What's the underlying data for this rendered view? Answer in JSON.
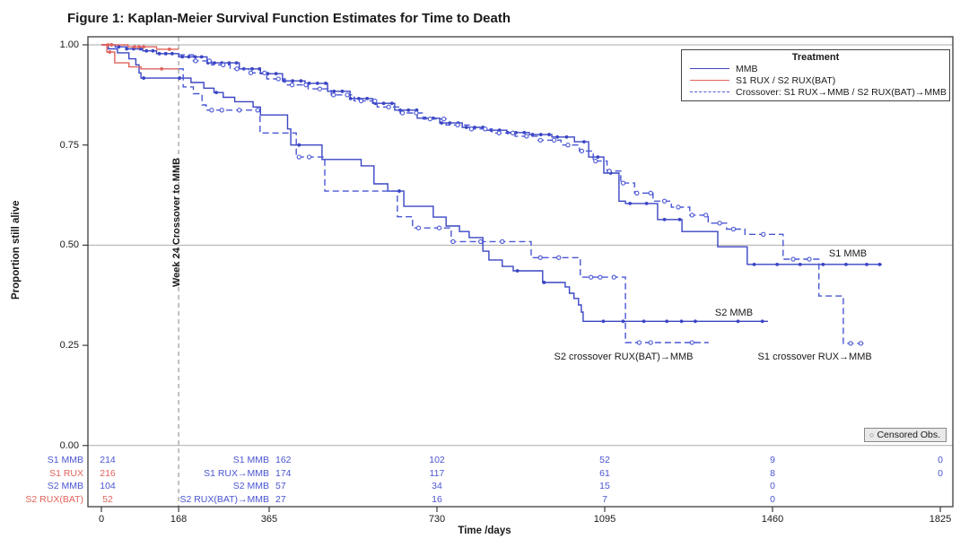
{
  "title": "Figure 1: Kaplan-Meier Survival Function Estimates for Time to Death",
  "colors": {
    "blue": "#3a45c4",
    "dashed_blue": "#4a57d4",
    "red": "#e0635c",
    "grid": "#ababab",
    "frame": "#3c3c3c",
    "crossover_line": "#9a9a9a",
    "atrisk_blue": "#4a55d2",
    "atrisk_red": "#e0635c"
  },
  "chart_data": {
    "type": "line",
    "subtype": "kaplan-meier-step",
    "title": "Figure 1: Kaplan-Meier Survival Function Estimates for Time to Death",
    "xlabel": "Time /days",
    "ylabel": "Proportion still alive",
    "xlim": [
      0,
      1825
    ],
    "ylim": [
      0.0,
      1.0
    ],
    "xticks": [
      0,
      168,
      365,
      730,
      1095,
      1460,
      1825
    ],
    "yticks": [
      1.0,
      0.75,
      0.5,
      0.25,
      0.0
    ],
    "ytick_labels": [
      "1.00",
      "0.75",
      "0.50",
      "0.25",
      "0.00"
    ],
    "reference_lines_y": [
      1.0,
      0.5,
      0.0
    ],
    "crossover_line_x": 168,
    "crossover_label": "Week 24 Crossover to MMB",
    "legend": {
      "title": "Treatment",
      "position": "top-right",
      "entries": [
        {
          "label": "MMB",
          "style": "solid",
          "color": "blue"
        },
        {
          "label": "S1 RUX / S2 RUX(BAT)",
          "style": "solid",
          "color": "red"
        },
        {
          "label": "Crossover: S1 RUX→MMB / S2 RUX(BAT)→MMB",
          "style": "dashed",
          "color": "blue"
        }
      ]
    },
    "censored_marker": "○",
    "censored_legend": "Censored Obs.",
    "series": [
      {
        "name": "S1 MMB",
        "style": "solid",
        "color": "blue",
        "points": [
          [
            0,
            1.0
          ],
          [
            30,
            0.995
          ],
          [
            55,
            0.99
          ],
          [
            90,
            0.985
          ],
          [
            120,
            0.978
          ],
          [
            168,
            0.97
          ],
          [
            230,
            0.955
          ],
          [
            300,
            0.94
          ],
          [
            346,
            0.928
          ],
          [
            394,
            0.91
          ],
          [
            443,
            0.904
          ],
          [
            492,
            0.884
          ],
          [
            541,
            0.866
          ],
          [
            590,
            0.854
          ],
          [
            638,
            0.837
          ],
          [
            687,
            0.817
          ],
          [
            736,
            0.805
          ],
          [
            785,
            0.794
          ],
          [
            833,
            0.787
          ],
          [
            882,
            0.781
          ],
          [
            931,
            0.776
          ],
          [
            980,
            0.77
          ],
          [
            1029,
            0.758
          ],
          [
            1060,
            0.72
          ],
          [
            1093,
            0.68
          ],
          [
            1126,
            0.61
          ],
          [
            1140,
            0.604
          ],
          [
            1210,
            0.564
          ],
          [
            1263,
            0.534
          ],
          [
            1341,
            0.496
          ],
          [
            1405,
            0.452
          ]
        ],
        "end_day": 1698,
        "censor_days": [
          22,
          38,
          55,
          70,
          85,
          98,
          112,
          126,
          140,
          154,
          176,
          190,
          204,
          218,
          232,
          246,
          262,
          278,
          294,
          310,
          328,
          344,
          362,
          380,
          398,
          416,
          434,
          452,
          470,
          488,
          506,
          524,
          542,
          560,
          578,
          596,
          614,
          632,
          650,
          668,
          686,
          704,
          722,
          740,
          758,
          776,
          794,
          812,
          830,
          848,
          866,
          884,
          902,
          920,
          938,
          956,
          974,
          992,
          1012,
          1050,
          1080,
          1108,
          1150,
          1186,
          1225,
          1258,
          1420,
          1470,
          1520,
          1570,
          1620,
          1665,
          1693
        ]
      },
      {
        "name": "Crossover S1 RUX→MMB",
        "style": "dashed",
        "color": "blue",
        "points": [
          [
            168,
            0.975
          ],
          [
            200,
            0.96
          ],
          [
            240,
            0.95
          ],
          [
            280,
            0.94
          ],
          [
            320,
            0.93
          ],
          [
            360,
            0.915
          ],
          [
            400,
            0.9
          ],
          [
            450,
            0.89
          ],
          [
            500,
            0.875
          ],
          [
            550,
            0.86
          ],
          [
            600,
            0.845
          ],
          [
            650,
            0.83
          ],
          [
            700,
            0.815
          ],
          [
            750,
            0.8
          ],
          [
            800,
            0.79
          ],
          [
            850,
            0.78
          ],
          [
            900,
            0.772
          ],
          [
            950,
            0.762
          ],
          [
            1000,
            0.75
          ],
          [
            1040,
            0.735
          ],
          [
            1070,
            0.71
          ],
          [
            1100,
            0.685
          ],
          [
            1130,
            0.655
          ],
          [
            1160,
            0.63
          ],
          [
            1200,
            0.61
          ],
          [
            1240,
            0.595
          ],
          [
            1280,
            0.575
          ],
          [
            1320,
            0.555
          ],
          [
            1360,
            0.54
          ],
          [
            1400,
            0.527
          ],
          [
            1483,
            0.465
          ],
          [
            1561,
            0.373
          ],
          [
            1614,
            0.255
          ]
        ],
        "end_day": 1663,
        "censor_days": [
          205,
          235,
          265,
          295,
          325,
          355,
          385,
          415,
          445,
          475,
          505,
          535,
          565,
          595,
          625,
          655,
          685,
          715,
          745,
          775,
          805,
          835,
          865,
          895,
          925,
          955,
          985,
          1015,
          1045,
          1075,
          1105,
          1135,
          1165,
          1195,
          1225,
          1255,
          1285,
          1315,
          1345,
          1375,
          1440,
          1505,
          1540,
          1630,
          1652
        ]
      },
      {
        "name": "S2 MMB",
        "style": "solid",
        "color": "blue",
        "points": [
          [
            0,
            1.0
          ],
          [
            15,
            0.99
          ],
          [
            35,
            0.98
          ],
          [
            60,
            0.965
          ],
          [
            75,
            0.95
          ],
          [
            82,
            0.93
          ],
          [
            86,
            0.917
          ],
          [
            195,
            0.906
          ],
          [
            223,
            0.892
          ],
          [
            245,
            0.881
          ],
          [
            265,
            0.869
          ],
          [
            290,
            0.858
          ],
          [
            330,
            0.845
          ],
          [
            346,
            0.825
          ],
          [
            405,
            0.79
          ],
          [
            412,
            0.75
          ],
          [
            480,
            0.714
          ],
          [
            565,
            0.698
          ],
          [
            593,
            0.653
          ],
          [
            623,
            0.635
          ],
          [
            658,
            0.597
          ],
          [
            722,
            0.57
          ],
          [
            750,
            0.548
          ],
          [
            779,
            0.534
          ],
          [
            800,
            0.519
          ],
          [
            830,
            0.485
          ],
          [
            843,
            0.463
          ],
          [
            872,
            0.447
          ],
          [
            896,
            0.436
          ],
          [
            960,
            0.407
          ],
          [
            1009,
            0.396
          ],
          [
            1018,
            0.38
          ],
          [
            1028,
            0.367
          ],
          [
            1038,
            0.351
          ],
          [
            1044,
            0.333
          ],
          [
            1048,
            0.31
          ]
        ],
        "end_day": 1450,
        "censor_days": [
          92,
          170,
          250,
          430,
          648,
          905,
          963,
          1092,
          1135,
          1180,
          1230,
          1262,
          1292,
          1385,
          1438
        ]
      },
      {
        "name": "Crossover S2 RUX(BAT)→MMB",
        "style": "dashed",
        "color": "blue",
        "points": [
          [
            168,
            0.94
          ],
          [
            178,
            0.895
          ],
          [
            200,
            0.878
          ],
          [
            219,
            0.85
          ],
          [
            228,
            0.837
          ],
          [
            345,
            0.78
          ],
          [
            424,
            0.72
          ],
          [
            486,
            0.635
          ],
          [
            644,
            0.571
          ],
          [
            677,
            0.543
          ],
          [
            761,
            0.509
          ],
          [
            935,
            0.469
          ],
          [
            1042,
            0.42
          ],
          [
            1140,
            0.257
          ]
        ],
        "end_day": 1321,
        "censor_days": [
          240,
          262,
          300,
          340,
          430,
          452,
          690,
          735,
          765,
          825,
          872,
          955,
          995,
          1065,
          1085,
          1115,
          1170,
          1195,
          1285
        ]
      },
      {
        "name": "S1 RUX",
        "style": "solid",
        "color": "red",
        "points": [
          [
            0,
            1.0
          ],
          [
            58,
            0.995
          ],
          [
            120,
            0.989
          ],
          [
            168,
            0.989
          ]
        ],
        "end_day": 168,
        "censor_days": [
          14,
          22,
          72,
          82,
          92,
          148
        ]
      },
      {
        "name": "S2 RUX(BAT)",
        "style": "solid",
        "color": "red",
        "points": [
          [
            0,
            1.0
          ],
          [
            12,
            0.982
          ],
          [
            29,
            0.955
          ],
          [
            60,
            0.945
          ],
          [
            86,
            0.94
          ],
          [
            168,
            0.94
          ]
        ],
        "end_day": 168,
        "censor_days": [
          18,
          131
        ]
      }
    ],
    "curve_labels": [
      {
        "text": "S1 MMB",
        "day": 1624,
        "value": 0.478
      },
      {
        "text": "S2 MMB",
        "day": 1376,
        "value": 0.331
      },
      {
        "text": "S2 crossover RUX(BAT)→MMB",
        "day": 1136,
        "value": 0.221
      },
      {
        "text": "S1 crossover RUX→MMB",
        "day": 1552,
        "value": 0.221
      }
    ],
    "at_risk_table": {
      "columns": [
        0,
        365,
        730,
        1095,
        1460,
        1825
      ],
      "rows": [
        {
          "label": "S1 MMB",
          "color": "blue",
          "label_365": "S1 MMB",
          "values": [
            214,
            162,
            102,
            52,
            9,
            0
          ]
        },
        {
          "label": "S1 RUX",
          "color": "red",
          "label_365": "S1 RUX→MMB",
          "values": [
            216,
            174,
            117,
            61,
            8,
            0
          ]
        },
        {
          "label": "S2 MMB",
          "color": "blue",
          "label_365": "S2 MMB",
          "values": [
            104,
            57,
            34,
            15,
            0,
            null
          ]
        },
        {
          "label": "S2 RUX(BAT)",
          "color": "red",
          "label_365": "S2 RUX(BAT)→MMB",
          "values": [
            52,
            27,
            16,
            7,
            0,
            null
          ]
        }
      ]
    }
  }
}
